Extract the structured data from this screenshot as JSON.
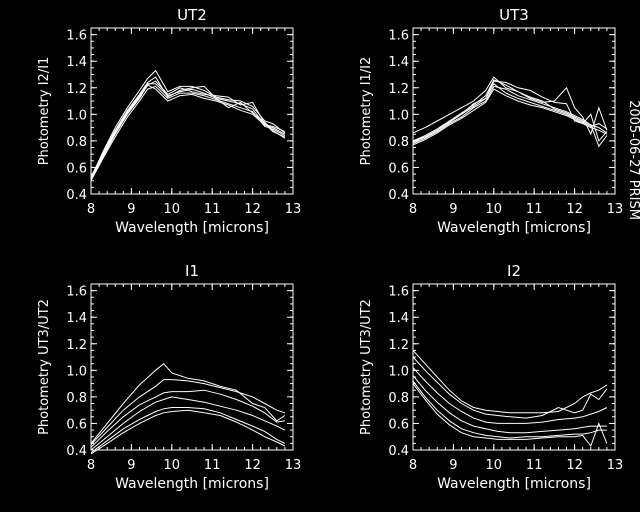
{
  "side_label": "2005-06-27 PRISM",
  "chart_data": [
    {
      "type": "line",
      "title": "UT2",
      "xlabel": "Wavelength [microns]",
      "ylabel": "Photometry I2/I1",
      "xlim": [
        8,
        13
      ],
      "ylim": [
        0.4,
        1.65
      ],
      "xticks": [
        "8",
        "9",
        "10",
        "11",
        "12",
        "13"
      ],
      "yticks": [
        "0.4",
        "0.6",
        "0.8",
        "1.0",
        "1.2",
        "1.4",
        "1.6"
      ],
      "x": [
        8.0,
        8.3,
        8.6,
        8.9,
        9.2,
        9.4,
        9.6,
        9.9,
        10.2,
        10.5,
        10.8,
        11.1,
        11.4,
        11.7,
        12.0,
        12.3,
        12.5,
        12.8
      ],
      "series": [
        {
          "values": [
            0.52,
            0.72,
            0.9,
            1.05,
            1.18,
            1.27,
            1.33,
            1.17,
            1.21,
            1.21,
            1.18,
            1.13,
            1.11,
            1.1,
            1.06,
            0.95,
            0.93,
            0.86
          ]
        },
        {
          "values": [
            0.53,
            0.71,
            0.88,
            1.03,
            1.15,
            1.24,
            1.28,
            1.13,
            1.18,
            1.2,
            1.21,
            1.12,
            1.1,
            1.08,
            1.04,
            0.92,
            0.9,
            0.85
          ]
        },
        {
          "values": [
            0.5,
            0.68,
            0.85,
            1.0,
            1.12,
            1.22,
            1.25,
            1.15,
            1.2,
            1.17,
            1.15,
            1.14,
            1.13,
            1.07,
            1.09,
            0.93,
            0.87,
            0.83
          ]
        },
        {
          "values": [
            0.5,
            0.67,
            0.83,
            0.98,
            1.1,
            1.19,
            1.21,
            1.12,
            1.16,
            1.16,
            1.14,
            1.11,
            1.08,
            1.05,
            1.02,
            0.91,
            0.89,
            0.84
          ]
        },
        {
          "values": [
            0.51,
            0.69,
            0.86,
            1.01,
            1.13,
            1.22,
            1.19,
            1.1,
            1.14,
            1.15,
            1.12,
            1.1,
            1.07,
            1.03,
            1.0,
            0.92,
            0.91,
            0.87
          ]
        },
        {
          "values": [
            0.52,
            0.7,
            0.87,
            1.02,
            1.14,
            1.23,
            1.23,
            1.14,
            1.17,
            1.19,
            1.16,
            1.12,
            1.05,
            1.09,
            1.01,
            0.94,
            0.88,
            0.82
          ]
        }
      ]
    },
    {
      "type": "line",
      "title": "UT3",
      "xlabel": "Wavelength [microns]",
      "ylabel": "Photometry I1/I2",
      "xlim": [
        8,
        13
      ],
      "ylim": [
        0.4,
        1.65
      ],
      "xticks": [
        "8",
        "9",
        "10",
        "11",
        "12",
        "13"
      ],
      "yticks": [
        "0.4",
        "0.6",
        "0.8",
        "1.0",
        "1.2",
        "1.4",
        "1.6"
      ],
      "x": [
        8.0,
        8.3,
        8.6,
        8.9,
        9.2,
        9.5,
        9.8,
        10.0,
        10.3,
        10.6,
        10.9,
        11.2,
        11.5,
        11.8,
        12.0,
        12.2,
        12.4,
        12.6,
        12.8
      ],
      "series": [
        {
          "values": [
            0.86,
            0.9,
            0.95,
            1.0,
            1.05,
            1.1,
            1.18,
            1.28,
            1.2,
            1.17,
            1.12,
            1.09,
            1.1,
            1.2,
            1.05,
            0.98,
            0.85,
            1.05,
            0.88
          ]
        },
        {
          "values": [
            0.8,
            0.83,
            0.88,
            0.95,
            1.0,
            1.08,
            1.12,
            1.25,
            1.24,
            1.2,
            1.18,
            1.13,
            1.09,
            1.08,
            0.95,
            0.93,
            1.0,
            0.8,
            0.87
          ]
        },
        {
          "values": [
            0.78,
            0.82,
            0.87,
            0.93,
            0.98,
            1.05,
            1.1,
            1.21,
            1.19,
            1.14,
            1.11,
            1.08,
            1.05,
            1.02,
            0.99,
            0.96,
            0.92,
            0.9,
            0.86
          ]
        },
        {
          "values": [
            0.79,
            0.83,
            0.88,
            0.94,
            1.0,
            1.06,
            1.12,
            1.23,
            1.16,
            1.12,
            1.09,
            1.06,
            1.03,
            1.0,
            0.97,
            0.94,
            0.91,
            0.93,
            0.89
          ]
        },
        {
          "values": [
            0.77,
            0.81,
            0.86,
            0.92,
            0.97,
            1.03,
            1.09,
            1.19,
            1.14,
            1.1,
            1.07,
            1.05,
            1.02,
            0.99,
            0.96,
            0.93,
            0.9,
            0.88,
            0.85
          ]
        },
        {
          "values": [
            0.8,
            0.84,
            0.89,
            0.95,
            1.01,
            1.07,
            1.14,
            1.26,
            1.22,
            1.17,
            1.13,
            1.1,
            1.04,
            1.01,
            0.98,
            0.95,
            0.92,
            0.76,
            0.84
          ]
        }
      ]
    },
    {
      "type": "line",
      "title": "I1",
      "xlabel": "Wavelength [microns]",
      "ylabel": "Photometry UT3/UT2",
      "xlim": [
        8,
        13
      ],
      "ylim": [
        0.4,
        1.65
      ],
      "xticks": [
        "8",
        "9",
        "10",
        "11",
        "12",
        "13"
      ],
      "yticks": [
        "0.4",
        "0.6",
        "0.8",
        "1.0",
        "1.2",
        "1.4",
        "1.6"
      ],
      "x": [
        8.0,
        8.4,
        8.8,
        9.2,
        9.6,
        9.8,
        10.0,
        10.4,
        10.8,
        11.2,
        11.6,
        12.0,
        12.3,
        12.6,
        12.8
      ],
      "series": [
        {
          "values": [
            0.45,
            0.6,
            0.75,
            0.89,
            1.0,
            1.05,
            0.98,
            0.94,
            0.92,
            0.88,
            0.85,
            0.75,
            0.72,
            0.62,
            0.66
          ]
        },
        {
          "values": [
            0.44,
            0.57,
            0.7,
            0.8,
            0.88,
            0.93,
            0.93,
            0.92,
            0.9,
            0.87,
            0.84,
            0.8,
            0.75,
            0.7,
            0.68
          ]
        },
        {
          "values": [
            0.42,
            0.54,
            0.65,
            0.74,
            0.8,
            0.83,
            0.84,
            0.84,
            0.85,
            0.82,
            0.78,
            0.73,
            0.68,
            0.61,
            0.62
          ]
        },
        {
          "values": [
            0.4,
            0.5,
            0.6,
            0.69,
            0.76,
            0.78,
            0.8,
            0.78,
            0.76,
            0.73,
            0.7,
            0.66,
            0.62,
            0.58,
            0.55
          ]
        },
        {
          "values": [
            0.38,
            0.47,
            0.56,
            0.63,
            0.69,
            0.71,
            0.72,
            0.72,
            0.71,
            0.68,
            0.63,
            0.58,
            0.54,
            0.48,
            0.45
          ]
        },
        {
          "values": [
            0.37,
            0.45,
            0.53,
            0.6,
            0.66,
            0.68,
            0.69,
            0.7,
            0.68,
            0.66,
            0.61,
            0.55,
            0.5,
            0.46,
            0.43
          ]
        }
      ]
    },
    {
      "type": "line",
      "title": "I2",
      "xlabel": "Wavelength [microns]",
      "ylabel": "Photometry UT3/UT2",
      "xlim": [
        8,
        13
      ],
      "ylim": [
        0.4,
        1.65
      ],
      "xticks": [
        "8",
        "9",
        "10",
        "11",
        "12",
        "13"
      ],
      "yticks": [
        "0.4",
        "0.6",
        "0.8",
        "1.0",
        "1.2",
        "1.4",
        "1.6"
      ],
      "x": [
        8.0,
        8.3,
        8.6,
        8.9,
        9.2,
        9.5,
        9.8,
        10.1,
        10.4,
        10.8,
        11.2,
        11.6,
        12.0,
        12.2,
        12.4,
        12.6,
        12.8
      ],
      "series": [
        {
          "values": [
            1.15,
            1.05,
            0.95,
            0.85,
            0.77,
            0.72,
            0.7,
            0.69,
            0.68,
            0.68,
            0.68,
            0.69,
            0.75,
            0.8,
            0.83,
            0.85,
            0.89
          ]
        },
        {
          "values": [
            1.1,
            1.0,
            0.91,
            0.82,
            0.75,
            0.7,
            0.67,
            0.66,
            0.65,
            0.64,
            0.66,
            0.72,
            0.68,
            0.7,
            0.82,
            0.78,
            0.86
          ]
        },
        {
          "values": [
            1.02,
            0.92,
            0.83,
            0.75,
            0.69,
            0.64,
            0.61,
            0.6,
            0.6,
            0.6,
            0.61,
            0.63,
            0.64,
            0.65,
            0.67,
            0.69,
            0.72
          ]
        },
        {
          "values": [
            0.96,
            0.85,
            0.76,
            0.68,
            0.62,
            0.58,
            0.56,
            0.54,
            0.53,
            0.53,
            0.54,
            0.55,
            0.56,
            0.57,
            0.58,
            0.58,
            0.58
          ]
        },
        {
          "values": [
            0.92,
            0.8,
            0.7,
            0.62,
            0.56,
            0.53,
            0.51,
            0.5,
            0.49,
            0.5,
            0.5,
            0.51,
            0.52,
            0.52,
            0.53,
            0.55,
            0.55
          ]
        },
        {
          "values": [
            0.9,
            0.78,
            0.67,
            0.59,
            0.53,
            0.5,
            0.49,
            0.48,
            0.48,
            0.48,
            0.49,
            0.5,
            0.5,
            0.51,
            0.43,
            0.6,
            0.45
          ]
        }
      ]
    }
  ]
}
